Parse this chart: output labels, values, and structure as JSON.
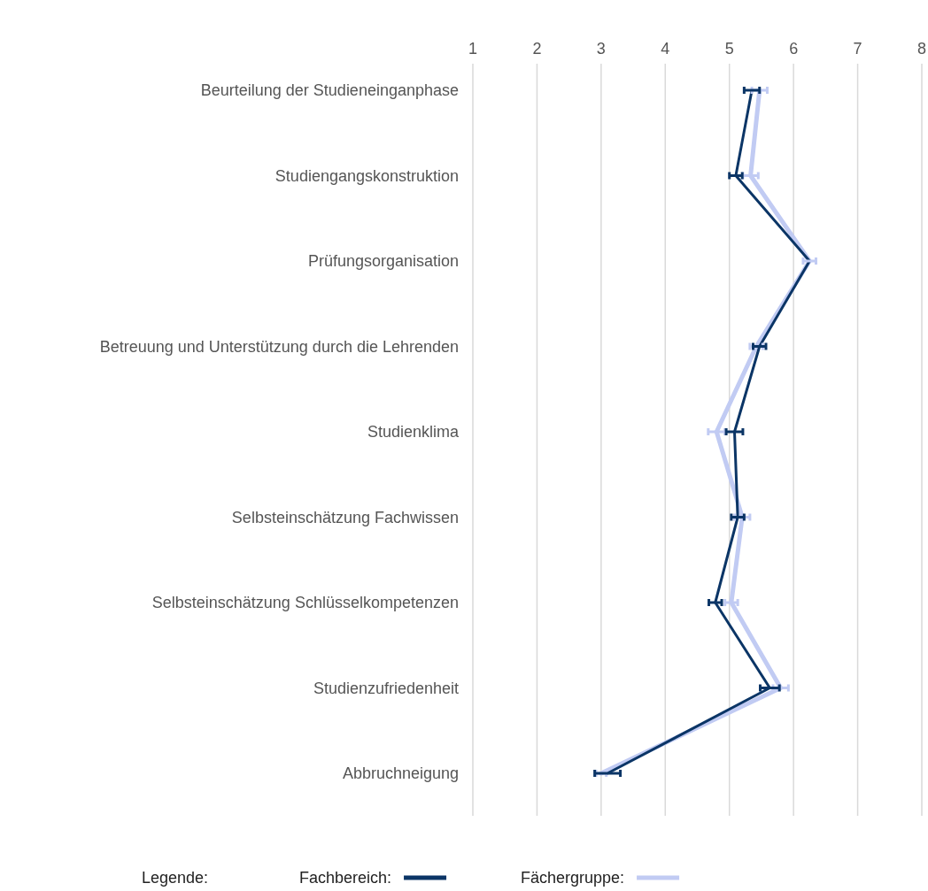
{
  "chart_data": {
    "type": "line",
    "orientation": "horizontal",
    "categories": [
      "Beurteilung der Studieneinganphase",
      "Studiengangskonstruktion",
      "Prüfungsorganisation",
      "Betreuung und Unterstützung durch die Lehrenden",
      "Studienklima",
      "Selbsteinschätzung Fachwissen",
      "Selbsteinschätzung Schlüsselkompetenzen",
      "Studienzufriedenheit",
      "Abbruchneigung"
    ],
    "series": [
      {
        "name": "Fächergruppe:",
        "color": "#c1cbf3",
        "values": [
          5.47,
          5.33,
          6.25,
          5.42,
          4.8,
          5.2,
          5.03,
          5.8,
          3.0
        ],
        "errors": [
          0.12,
          0.12,
          0.1,
          0.1,
          0.13,
          0.12,
          0.1,
          0.12,
          0.08
        ]
      },
      {
        "name": "Fachbereich:",
        "color": "#0b3566",
        "values": [
          5.35,
          5.1,
          6.25,
          5.47,
          5.08,
          5.13,
          4.78,
          5.63,
          3.1
        ],
        "errors": [
          0.12,
          0.1,
          null,
          0.1,
          0.13,
          0.1,
          0.1,
          0.15,
          0.2
        ]
      }
    ],
    "xlim": [
      1,
      8
    ],
    "xticks": [
      1,
      2,
      3,
      4,
      5,
      6,
      7,
      8
    ],
    "grid": "x",
    "legend": "bottom",
    "legend_title": "Legende:",
    "marker": "none",
    "line_style": "solid"
  }
}
